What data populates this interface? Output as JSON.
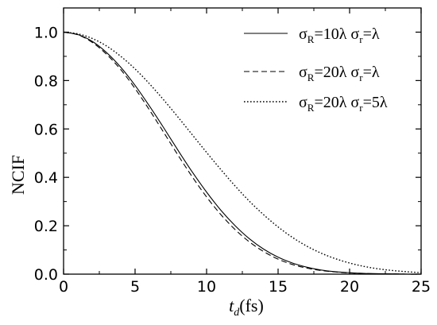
{
  "chart_data": {
    "type": "line",
    "title": "",
    "xlabel_main": "t",
    "xlabel_sub": "d",
    "xlabel_unit": "(fs)",
    "ylabel": "NCIF",
    "xlim": [
      0,
      25
    ],
    "ylim": [
      0,
      1.1
    ],
    "xticks": [
      0,
      5,
      10,
      15,
      20,
      25
    ],
    "yticks": [
      0.0,
      0.2,
      0.4,
      0.6,
      0.8,
      1.0
    ],
    "xtick_labels": [
      "0",
      "5",
      "10",
      "15",
      "20",
      "25"
    ],
    "ytick_labels": [
      "0.0",
      "0.2",
      "0.4",
      "0.6",
      "0.8",
      "1.0"
    ],
    "grid": false,
    "legend_position": "top-right",
    "series": [
      {
        "legend": {
          "s1": "σ",
          "sub1": "R",
          "mid": "=10λ σ",
          "sub2": "r",
          "tail": "=λ"
        },
        "style": "solid",
        "x": [
          0,
          1,
          2,
          3,
          4,
          5,
          6,
          7,
          8,
          9,
          10,
          11,
          12,
          13,
          14,
          15,
          16,
          17,
          18,
          19,
          20,
          21,
          22,
          23,
          24,
          25
        ],
        "y": [
          1.0,
          0.99,
          0.962,
          0.916,
          0.855,
          0.78,
          0.695,
          0.605,
          0.512,
          0.422,
          0.339,
          0.264,
          0.2,
          0.146,
          0.103,
          0.07,
          0.046,
          0.029,
          0.017,
          0.01,
          0.006,
          0.003,
          0.002,
          0.001,
          0.0,
          0.0
        ]
      },
      {
        "legend": {
          "s1": "σ",
          "sub1": "R",
          "mid": "=20λ σ",
          "sub2": "r",
          "tail": "=λ"
        },
        "style": "dashed",
        "x": [
          0,
          1,
          2,
          3,
          4,
          5,
          6,
          7,
          8,
          9,
          10,
          11,
          12,
          13,
          14,
          15,
          16,
          17,
          18,
          19,
          20,
          21,
          22,
          23,
          24,
          25
        ],
        "y": [
          1.0,
          0.989,
          0.958,
          0.909,
          0.845,
          0.767,
          0.679,
          0.586,
          0.492,
          0.402,
          0.319,
          0.246,
          0.184,
          0.133,
          0.093,
          0.062,
          0.04,
          0.025,
          0.015,
          0.009,
          0.005,
          0.003,
          0.001,
          0.001,
          0.0,
          0.0
        ]
      },
      {
        "legend": {
          "s1": "σ",
          "sub1": "R",
          "mid": "=20λ σ",
          "sub2": "r",
          "tail": "=5λ"
        },
        "style": "dotted",
        "x": [
          0,
          1,
          2,
          3,
          4,
          5,
          6,
          7,
          8,
          9,
          10,
          11,
          12,
          13,
          14,
          15,
          16,
          17,
          18,
          19,
          20,
          21,
          22,
          23,
          24,
          25
        ],
        "y": [
          1.0,
          0.993,
          0.974,
          0.943,
          0.9,
          0.848,
          0.787,
          0.72,
          0.649,
          0.576,
          0.503,
          0.432,
          0.364,
          0.301,
          0.245,
          0.195,
          0.152,
          0.116,
          0.087,
          0.064,
          0.046,
          0.032,
          0.022,
          0.015,
          0.01,
          0.006
        ]
      }
    ]
  }
}
